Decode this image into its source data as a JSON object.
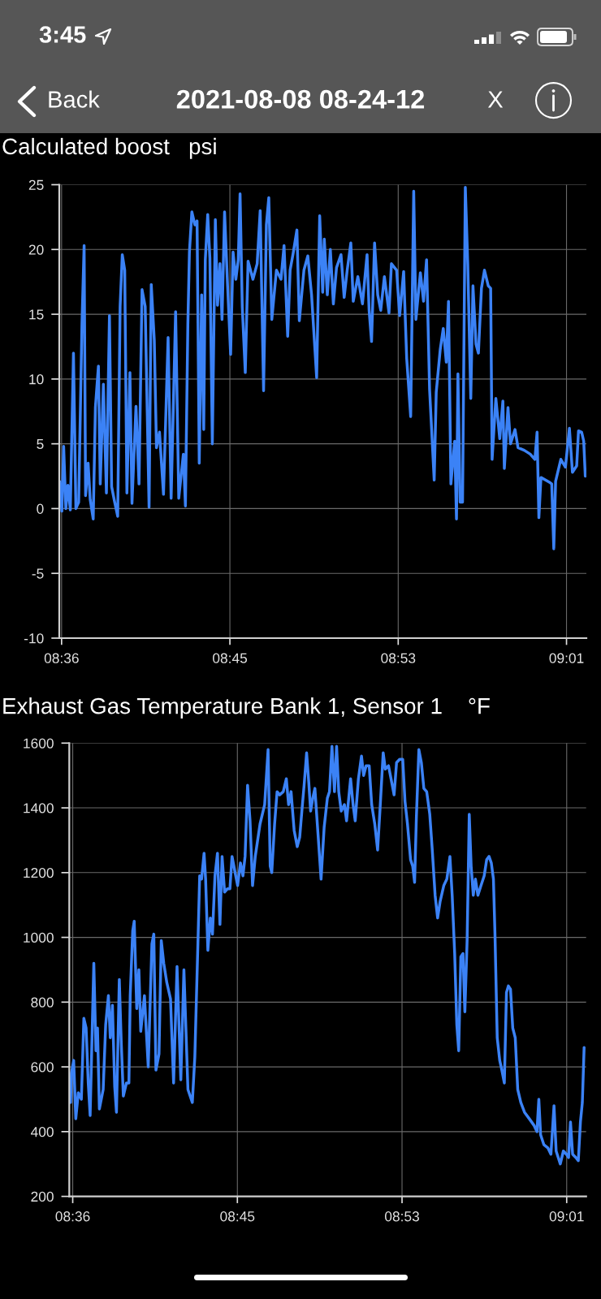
{
  "chart_data": [
    {
      "type": "line",
      "title": "Calculated boost   psi",
      "annotations": [
        "3:45",
        "Back",
        "2021-08-08 08-24-12",
        "X"
      ],
      "x": [
        8.604,
        8.6058,
        8.6073,
        8.6091,
        8.6108,
        8.6128,
        8.6154,
        8.6174,
        8.6197,
        8.6224,
        8.6242,
        8.6254,
        8.6275,
        8.6292,
        8.6317,
        8.6335,
        8.636,
        8.6375,
        8.6401,
        8.6426,
        8.6451,
        8.6469,
        8.6494,
        8.6519,
        8.6539,
        8.6557,
        8.6577,
        8.6595,
        8.662,
        8.6637,
        8.667,
        8.6695,
        8.672,
        8.6746,
        8.6778,
        8.6796,
        8.6821,
        8.6839,
        8.6864,
        8.6897,
        8.6935,
        8.696,
        8.6997,
        8.7023,
        8.7061,
        8.7078,
        8.7098,
        8.7111,
        8.7131,
        8.7156,
        8.7174,
        8.7192,
        8.7212,
        8.7229,
        8.7242,
        8.7262,
        8.728,
        8.73,
        8.7325,
        8.7343,
        8.7363,
        8.738,
        8.7401,
        8.7426,
        8.7451,
        8.7471,
        8.7494,
        8.7514,
        8.7529,
        8.7547,
        8.7572,
        8.7595,
        8.7635,
        8.767,
        8.7695,
        8.7723,
        8.7746,
        8.7766,
        8.7791,
        8.7829,
        8.7867,
        8.7892,
        8.7922,
        8.7942,
        8.7967,
        8.7998,
        8.8018,
        8.8056,
        8.8088,
        8.8119,
        8.8161,
        8.8186,
        8.8211,
        8.8224,
        8.8249,
        8.8274,
        8.8299,
        8.8325,
        8.8362,
        8.8388,
        8.8413,
        8.8443,
        8.8463,
        8.8501,
        8.8539,
        8.8577,
        8.8594,
        8.8614,
        8.8639,
        8.8665,
        8.869,
        8.872,
        8.8758,
        8.8778,
        8.8821,
        8.8846,
        8.8879,
        8.8904,
        8.8937,
        8.8962,
        8.898,
        8.9017,
        8.9043,
        8.9068,
        8.9093,
        8.9131,
        8.9148,
        8.9181,
        8.9206,
        8.9231,
        8.9249,
        8.9269,
        8.93,
        8.9315,
        8.9327,
        8.9345,
        8.9365,
        8.9388,
        8.9408,
        8.9433,
        8.9451,
        8.9476,
        8.9496,
        8.9521,
        8.9546,
        8.9577,
        8.9597,
        8.9609,
        8.964,
        8.9672,
        8.9698,
        8.971,
        8.974,
        8.9761,
        8.9798,
        8.9823,
        8.9874,
        8.9924,
        8.9962,
        8.998,
        8.9995,
        9.0012,
        9.005,
        9.0088,
        9.0101,
        9.0118,
        9.0133,
        9.0176,
        9.0214,
        9.0247,
        9.0272,
        9.0307,
        9.0322,
        9.0348,
        9.0365,
        9.0378
      ],
      "series": [
        {
          "color": "#3b82f6",
          "values": [
            2.1,
            -0.2,
            4.8,
            0,
            1.8,
            -0.1,
            12.0,
            0,
            0.5,
            14.2,
            20.3,
            1.0,
            3.5,
            0.7,
            -0.8,
            7.8,
            11.0,
            1.9,
            9.6,
            1.2,
            14.9,
            1.7,
            0.5,
            -0.6,
            15.6,
            19.6,
            18.4,
            1.2,
            10.5,
            0.4,
            7.9,
            1.9,
            16.9,
            15.6,
            0.1,
            17.3,
            13.0,
            4.7,
            5.9,
            1.1,
            13.2,
            0.8,
            15.2,
            0.8,
            4.2,
            0.2,
            14.2,
            19.8,
            22.9,
            21.9,
            22.2,
            3.5,
            16.5,
            6.1,
            19.2,
            22.7,
            19.3,
            5.0,
            22.3,
            15.7,
            18.9,
            14.6,
            22.9,
            17.2,
            11.9,
            19.8,
            17.7,
            19.2,
            24.3,
            15.6,
            10.5,
            19.1,
            17.7,
            18.9,
            23.0,
            9.1,
            21.9,
            24.0,
            14.6,
            18.4,
            17.7,
            20.3,
            13.3,
            18.4,
            19.7,
            21.5,
            14.5,
            18.4,
            19.5,
            16.5,
            10.1,
            22.6,
            16.7,
            20.8,
            16.5,
            20.0,
            15.8,
            18.6,
            19.6,
            16.3,
            18.4,
            20.5,
            16.0,
            17.9,
            15.8,
            19.6,
            15.3,
            12.9,
            20.5,
            16.5,
            15.3,
            17.9,
            15.1,
            18.9,
            18.4,
            14.9,
            18.3,
            11.6,
            7.1,
            24.5,
            14.6,
            18.2,
            16.0,
            19.2,
            9.2,
            2.2,
            9.0,
            12.3,
            13.9,
            11.3,
            16.0,
            1.9,
            5.2,
            -0.8,
            10.4,
            0.5,
            0.5,
            24.8,
            18.9,
            8.5,
            17.2,
            12.7,
            12.0,
            17.0,
            18.4,
            17.2,
            17.0,
            3.8,
            8.5,
            5.4,
            8.3,
            3.1,
            7.8,
            5.0,
            6.1,
            4.7,
            4.5,
            4.2,
            3.8,
            5.9,
            -0.7,
            2.4,
            2.2,
            2.0,
            1.9,
            -3.1,
            2.1,
            3.8,
            3.2,
            6.2,
            2.8,
            3.3,
            6.0,
            5.9,
            5.2,
            2.5
          ]
        }
      ],
      "xlim": [
        8.6037,
        9.0387
      ],
      "xticks": [
        {
          "value": 8.6056,
          "label": "08:36"
        },
        {
          "value": 8.7445,
          "label": "08:45"
        },
        {
          "value": 8.8834,
          "label": "08:53"
        },
        {
          "value": 9.0223,
          "label": "09:01"
        }
      ],
      "ylim": [
        -10,
        25
      ],
      "yticks": [
        -10,
        -5,
        0,
        5,
        10,
        15,
        20,
        25
      ],
      "grid": true
    },
    {
      "type": "line",
      "title": "Exhaust Gas Temperature Bank 1, Sensor 1    °F",
      "x": [
        8.6038,
        8.6045,
        8.6064,
        8.6082,
        8.6103,
        8.6129,
        8.615,
        8.6169,
        8.6187,
        8.6203,
        8.6234,
        8.6252,
        8.6265,
        8.6281,
        8.6313,
        8.6334,
        8.6357,
        8.6373,
        8.6391,
        8.641,
        8.6425,
        8.6449,
        8.6465,
        8.6483,
        8.6509,
        8.653,
        8.6541,
        8.6562,
        8.6575,
        8.6596,
        8.6614,
        8.663,
        8.6661,
        8.6693,
        8.6724,
        8.674,
        8.6758,
        8.6784,
        8.6803,
        8.6824,
        8.685,
        8.6881,
        8.6907,
        8.6936,
        8.6968,
        8.6994,
        8.7028,
        8.7065,
        8.7086,
        8.7112,
        8.7127,
        8.7143,
        8.7164,
        8.7177,
        8.7196,
        8.7217,
        8.7235,
        8.7256,
        8.7277,
        8.7298,
        8.7316,
        8.7337,
        8.7361,
        8.7382,
        8.74,
        8.7426,
        8.7447,
        8.7471,
        8.7492,
        8.751,
        8.7531,
        8.7552,
        8.7573,
        8.7596,
        8.7636,
        8.7675,
        8.7704,
        8.7722,
        8.7735,
        8.7759,
        8.778,
        8.7801,
        8.7832,
        8.7858,
        8.7877,
        8.7898,
        8.7924,
        8.795,
        8.7971,
        8.7989,
        8.8008,
        8.8029,
        8.8047,
        8.8063,
        8.8081,
        8.8099,
        8.8125,
        8.8151,
        8.8177,
        8.8204,
        8.8222,
        8.8243,
        8.8264,
        8.8282,
        8.83,
        8.8321,
        8.8348,
        8.8366,
        8.84,
        8.8421,
        8.8439,
        8.8466,
        8.8492,
        8.851,
        8.8531,
        8.8557,
        8.8578,
        8.8604,
        8.8628,
        8.8649,
        8.8675,
        8.8693,
        8.872,
        8.8741,
        8.8767,
        8.8788,
        8.8814,
        8.884,
        8.8859,
        8.888,
        8.8906,
        8.8924,
        8.894,
        8.8955,
        8.8976,
        8.8997,
        8.9018,
        8.9042,
        8.9068,
        8.9089,
        8.9113,
        8.9134,
        8.9155,
        8.9186,
        8.9212,
        8.9238,
        8.9257,
        8.9278,
        8.9296,
        8.9312,
        8.933,
        8.9348,
        8.9364,
        8.9383,
        8.9401,
        8.9417,
        8.9435,
        8.9453,
        8.9474,
        8.95,
        8.9527,
        8.9548,
        8.9568,
        8.9587,
        8.9605,
        8.9618,
        8.9637,
        8.9658,
        8.9676,
        8.9697,
        8.9715,
        8.9731,
        8.9749,
        8.9768,
        8.9789,
        8.981,
        8.9836,
        8.9867,
        8.9907,
        8.9946,
        8.9972,
        8.9988,
        9.0003,
        9.003,
        9.0064,
        9.009,
        9.0116,
        9.0134,
        9.0169,
        9.0195,
        9.0221,
        9.0239,
        9.0255,
        9.0273,
        9.03,
        9.0321,
        9.0339,
        9.0355,
        9.037
      ],
      "series": [
        {
          "color": "#3b82f6",
          "values": [
            490,
            580,
            620,
            440,
            520,
            500,
            750,
            720,
            550,
            450,
            920,
            650,
            720,
            470,
            530,
            730,
            820,
            690,
            790,
            540,
            460,
            870,
            680,
            510,
            550,
            550,
            820,
            1020,
            1050,
            780,
            900,
            710,
            820,
            600,
            980,
            1010,
            590,
            640,
            990,
            920,
            860,
            810,
            550,
            910,
            560,
            900,
            530,
            490,
            630,
            980,
            1190,
            1180,
            1260,
            1180,
            960,
            1060,
            1010,
            1190,
            1260,
            1040,
            1250,
            1140,
            1150,
            1150,
            1250,
            1200,
            1160,
            1230,
            1190,
            1250,
            1470,
            1360,
            1160,
            1250,
            1350,
            1410,
            1580,
            1220,
            1200,
            1350,
            1450,
            1440,
            1450,
            1490,
            1410,
            1450,
            1330,
            1280,
            1310,
            1390,
            1470,
            1570,
            1480,
            1390,
            1430,
            1460,
            1320,
            1180,
            1340,
            1430,
            1450,
            1590,
            1450,
            1590,
            1450,
            1390,
            1410,
            1360,
            1490,
            1410,
            1360,
            1490,
            1560,
            1500,
            1530,
            1530,
            1410,
            1350,
            1270,
            1400,
            1570,
            1520,
            1530,
            1490,
            1440,
            1540,
            1550,
            1550,
            1420,
            1350,
            1240,
            1220,
            1170,
            1370,
            1580,
            1540,
            1460,
            1450,
            1380,
            1270,
            1130,
            1060,
            1110,
            1160,
            1180,
            1250,
            1130,
            950,
            730,
            650,
            940,
            950,
            770,
            990,
            1380,
            1220,
            1130,
            1180,
            1130,
            1160,
            1190,
            1240,
            1250,
            1230,
            1180,
            1010,
            690,
            620,
            590,
            550,
            830,
            850,
            840,
            720,
            690,
            530,
            490,
            460,
            440,
            420,
            400,
            500,
            390,
            360,
            350,
            330,
            480,
            340,
            300,
            340,
            330,
            320,
            430,
            330,
            320,
            310,
            430,
            490,
            660
          ]
        }
      ],
      "xlim": [
        8.6027,
        9.0387
      ],
      "xticks": [
        {
          "value": 8.6056,
          "label": "08:36"
        },
        {
          "value": 8.7445,
          "label": "08:45"
        },
        {
          "value": 8.8834,
          "label": "08:53"
        },
        {
          "value": 9.0223,
          "label": "09:01"
        }
      ],
      "ylim": [
        200,
        1600
      ],
      "yticks": [
        200,
        400,
        600,
        800,
        1000,
        1200,
        1400,
        1600
      ],
      "grid": true
    }
  ]
}
